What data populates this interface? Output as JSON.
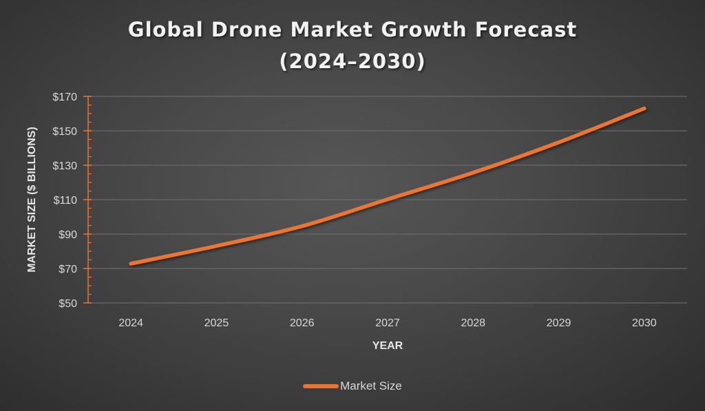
{
  "chart_data": {
    "type": "line",
    "title_line1": "Global Drone Market Growth Forecast",
    "title_line2": "(2024–2030)",
    "xlabel": "YEAR",
    "ylabel": "MARKET SIZE ($ BILLIONS)",
    "categories": [
      "2024",
      "2025",
      "2026",
      "2027",
      "2028",
      "2029",
      "2030"
    ],
    "series": [
      {
        "name": "Market Size",
        "color": "#ED7430",
        "values": [
          72.8,
          83.1,
          94.6,
          110.2,
          125.7,
          143.3,
          163.0
        ]
      }
    ],
    "ylim": [
      50,
      170
    ],
    "y_major_step": 20,
    "y_minor_step": 5,
    "y_tick_labels": [
      "$50",
      "$70",
      "$90",
      "$110",
      "$130",
      "$150",
      "$170"
    ],
    "y_tick_values": [
      50,
      70,
      90,
      110,
      130,
      150,
      170
    ],
    "grid": true,
    "legend": "bottom",
    "axis_color": "#ED7430"
  },
  "legend": {
    "label": "Market Size"
  }
}
